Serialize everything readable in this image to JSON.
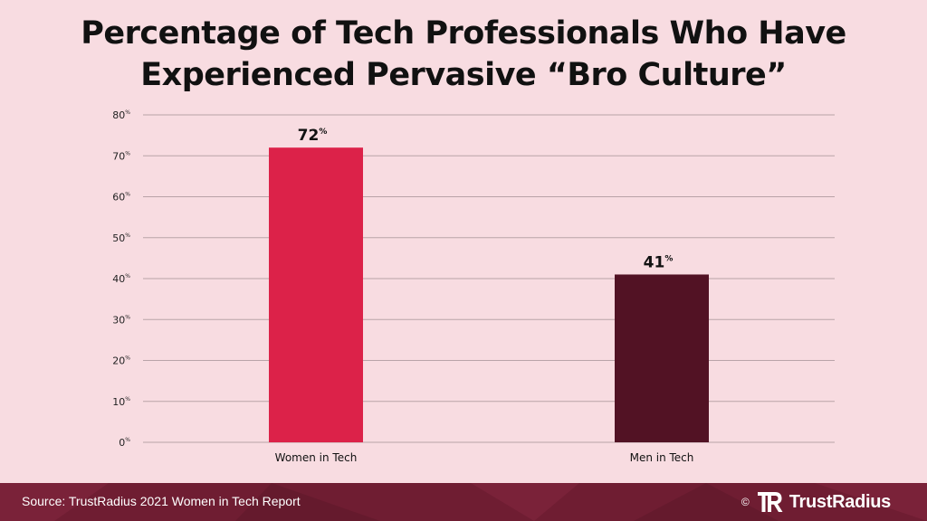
{
  "title_lines": [
    "Percentage of Tech Professionals Who Have",
    "Experienced Pervasive “Bro Culture”"
  ],
  "chart_data": {
    "type": "bar",
    "title": "Percentage of Tech Professionals Who Have Experienced Pervasive “Bro Culture”",
    "categories": [
      "Women in Tech",
      "Men in Tech"
    ],
    "values": [
      72,
      41
    ],
    "value_labels": [
      "72",
      "41"
    ],
    "unit": "%",
    "bar_colors": [
      "#dc2249",
      "#521224"
    ],
    "ylim": [
      0,
      80
    ],
    "yticks": [
      0,
      10,
      20,
      30,
      40,
      50,
      60,
      70,
      80
    ],
    "grid": true,
    "xlabel": "",
    "ylabel": ""
  },
  "footer": {
    "source": "Source: TrustRadius 2021 Women in Tech Report",
    "copyright": "©",
    "brand_name": "TrustRadius",
    "brand_icon": "trustradius-logo-icon"
  },
  "colors": {
    "background": "#f8dce1",
    "footer": "#6f1d32",
    "grid": "#b9a3a8"
  }
}
